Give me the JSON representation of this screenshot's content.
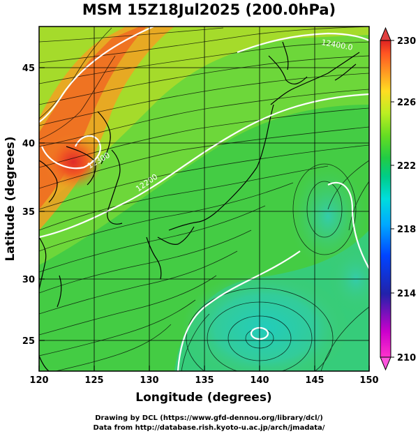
{
  "title": "MSM 15Z18Jul2025 (200.0hPa)",
  "x_axis": {
    "label": "Longitude (degrees)",
    "ticks": [
      "120",
      "125",
      "130",
      "135",
      "140",
      "145",
      "150"
    ],
    "range": [
      120,
      150
    ]
  },
  "y_axis": {
    "label": "Latitude  (degrees)",
    "ticks": [
      "25",
      "30",
      "35",
      "40",
      "45"
    ],
    "range": [
      22.4,
      47.6
    ]
  },
  "colorbar": {
    "ticks": [
      "230",
      "226",
      "222",
      "218",
      "214",
      "210"
    ],
    "range": [
      210,
      230
    ],
    "colors": [
      "#ff33cc",
      "#cc00cc",
      "#2222aa",
      "#0044ff",
      "#00aaff",
      "#00dddd",
      "#00cc88",
      "#22cc44",
      "#66dd22",
      "#bbee22",
      "#ffdd22",
      "#ff9922",
      "#ff5522",
      "#dd2222"
    ]
  },
  "contour_labels": [
    "12400.0",
    "12300",
    "12200"
  ],
  "credits": {
    "line1": "Drawing by DCL (https://www.gfd-dennou.org/library/dcl/)",
    "line2": "Data from http://database.rish.kyoto-u.ac.jp/arch/jmadata/"
  },
  "colors": {
    "background_green": "#33cc33",
    "warm": "#ee4422",
    "cool": "#22ccaa"
  }
}
